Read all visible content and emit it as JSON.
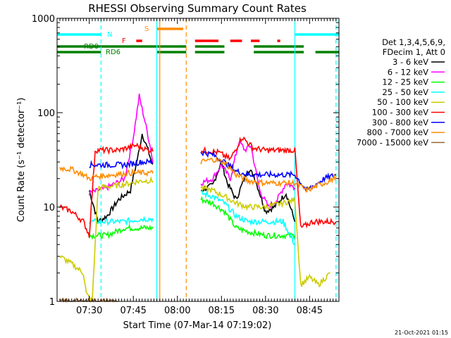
{
  "chart_data": {
    "type": "line",
    "title": "RHESSI Observing Summary Count Rates",
    "xlabel": "Start Time (07-Mar-14 07:19:02)",
    "ylabel": "Count Rate (s⁻¹ detector⁻¹)",
    "y_scale": "log",
    "ylim": [
      1,
      1000
    ],
    "y_ticks": [
      {
        "value": 1,
        "label": "1"
      },
      {
        "value": 10,
        "label": "10"
      },
      {
        "value": 100,
        "label": "100"
      },
      {
        "value": 1000,
        "label": "1000"
      }
    ],
    "xlim": [
      "07:19:02",
      "08:55:00"
    ],
    "x_ticks": [
      {
        "value": "07:30",
        "label": "07:30"
      },
      {
        "value": "07:45",
        "label": "07:45"
      },
      {
        "value": "08:00",
        "label": "08:00"
      },
      {
        "value": "08:15",
        "label": "08:15"
      },
      {
        "value": "08:30",
        "label": "08:30"
      },
      {
        "value": "08:45",
        "label": "08:45"
      }
    ],
    "legend_placement": "right",
    "legend_header": [
      "Det 1,3,4,5,6,9,",
      "FDecim 1, Att 0"
    ],
    "timestamp": "21-Oct-2021 01:15",
    "series": [
      {
        "name": "3 - 6 keV",
        "color": "#000000",
        "points": [
          [
            "07:30",
            15
          ],
          [
            "07:33",
            7
          ],
          [
            "07:36",
            8
          ],
          [
            "07:40",
            12
          ],
          [
            "07:44",
            15
          ],
          [
            "07:47",
            40
          ],
          [
            "07:48",
            60
          ],
          [
            "07:50",
            40
          ],
          [
            "07:52",
            25
          ],
          [
            "08:08",
            15
          ],
          [
            "08:12",
            17
          ],
          [
            "08:15",
            30
          ],
          [
            "08:17",
            18
          ],
          [
            "08:20",
            12
          ],
          [
            "08:24",
            25
          ],
          [
            "08:26",
            22
          ],
          [
            "08:30",
            9
          ],
          [
            "08:33",
            10
          ],
          [
            "08:37",
            14
          ],
          [
            "08:40",
            7
          ]
        ]
      },
      {
        "name": "6 - 12 keV",
        "color": "#ff00ff",
        "points": [
          [
            "07:30",
            14
          ],
          [
            "07:36",
            16
          ],
          [
            "07:42",
            20
          ],
          [
            "07:45",
            55
          ],
          [
            "07:47",
            150
          ],
          [
            "07:49",
            80
          ],
          [
            "07:51",
            40
          ],
          [
            "07:52",
            25
          ],
          [
            "08:08",
            18
          ],
          [
            "08:12",
            20
          ],
          [
            "08:15",
            28
          ],
          [
            "08:18",
            20
          ],
          [
            "08:21",
            50
          ],
          [
            "08:23",
            40
          ],
          [
            "08:25",
            45
          ],
          [
            "08:28",
            15
          ],
          [
            "08:31",
            10
          ],
          [
            "08:34",
            12
          ],
          [
            "08:37",
            18
          ],
          [
            "08:40",
            16
          ]
        ]
      },
      {
        "name": "12 - 25 keV",
        "color": "#00ff00",
        "points": [
          [
            "07:30",
            5
          ],
          [
            "07:36",
            5
          ],
          [
            "07:42",
            6
          ],
          [
            "07:48",
            6
          ],
          [
            "07:52",
            6
          ],
          [
            "08:08",
            12
          ],
          [
            "08:12",
            11
          ],
          [
            "08:16",
            9
          ],
          [
            "08:20",
            6
          ],
          [
            "08:24",
            5.5
          ],
          [
            "08:30",
            5
          ],
          [
            "08:36",
            5
          ],
          [
            "08:40",
            5
          ]
        ]
      },
      {
        "name": "25 - 50 keV",
        "color": "#00ffff",
        "points": [
          [
            "07:30",
            7
          ],
          [
            "07:36",
            7
          ],
          [
            "07:42",
            7
          ],
          [
            "07:48",
            7.5
          ],
          [
            "07:52",
            7.5
          ],
          [
            "08:08",
            14
          ],
          [
            "08:12",
            13
          ],
          [
            "08:16",
            11
          ],
          [
            "08:20",
            8
          ],
          [
            "08:24",
            7
          ],
          [
            "08:30",
            7
          ],
          [
            "08:36",
            7
          ],
          [
            "08:40",
            4
          ]
        ]
      },
      {
        "name": "50 - 100 keV",
        "color": "#cccc00",
        "points": [
          [
            "07:20",
            3
          ],
          [
            "07:24",
            2.5
          ],
          [
            "07:28",
            2
          ],
          [
            "07:29",
            1.2
          ],
          [
            "07:31",
            1
          ],
          [
            "07:33",
            16
          ],
          [
            "07:40",
            17
          ],
          [
            "07:48",
            19
          ],
          [
            "07:52",
            19
          ],
          [
            "08:08",
            16
          ],
          [
            "08:12",
            15
          ],
          [
            "08:16",
            13
          ],
          [
            "08:20",
            11
          ],
          [
            "08:24",
            10
          ],
          [
            "08:30",
            10
          ],
          [
            "08:36",
            11
          ],
          [
            "08:40",
            12
          ],
          [
            "08:42",
            1.5
          ],
          [
            "08:45",
            1.8
          ],
          [
            "08:48",
            1.5
          ],
          [
            "08:52",
            2
          ]
        ]
      },
      {
        "name": "100 - 300 keV",
        "color": "#ff0000",
        "points": [
          [
            "07:20",
            10
          ],
          [
            "07:24",
            9
          ],
          [
            "07:28",
            7
          ],
          [
            "07:30",
            5
          ],
          [
            "07:32",
            40
          ],
          [
            "07:40",
            40
          ],
          [
            "07:46",
            45
          ],
          [
            "07:50",
            40
          ],
          [
            "07:52",
            40
          ],
          [
            "08:08",
            40
          ],
          [
            "08:14",
            38
          ],
          [
            "08:18",
            32
          ],
          [
            "08:22",
            55
          ],
          [
            "08:26",
            42
          ],
          [
            "08:30",
            40
          ],
          [
            "08:36",
            40
          ],
          [
            "08:40",
            40
          ],
          [
            "08:42",
            6
          ],
          [
            "08:46",
            7
          ],
          [
            "08:50",
            7
          ],
          [
            "08:54",
            7
          ]
        ]
      },
      {
        "name": "300 - 800 keV",
        "color": "#0000ff",
        "points": [
          [
            "07:30",
            28
          ],
          [
            "07:36",
            28
          ],
          [
            "07:42",
            28
          ],
          [
            "07:48",
            30
          ],
          [
            "07:52",
            30
          ],
          [
            "08:08",
            38
          ],
          [
            "08:12",
            36
          ],
          [
            "08:16",
            30
          ],
          [
            "08:20",
            24
          ],
          [
            "08:24",
            22
          ],
          [
            "08:30",
            22
          ],
          [
            "08:36",
            22
          ],
          [
            "08:40",
            22
          ],
          [
            "08:44",
            15
          ],
          [
            "08:50",
            20
          ],
          [
            "08:54",
            22
          ]
        ]
      },
      {
        "name": "800 - 7000 keV",
        "color": "#ff8c00",
        "points": [
          [
            "07:20",
            26
          ],
          [
            "07:24",
            25
          ],
          [
            "07:28",
            22
          ],
          [
            "07:30",
            20
          ],
          [
            "07:32",
            21
          ],
          [
            "07:38",
            22
          ],
          [
            "07:44",
            23
          ],
          [
            "07:50",
            23
          ],
          [
            "07:52",
            23
          ],
          [
            "08:08",
            30
          ],
          [
            "08:12",
            32
          ],
          [
            "08:16",
            30
          ],
          [
            "08:20",
            22
          ],
          [
            "08:24",
            19
          ],
          [
            "08:30",
            18
          ],
          [
            "08:36",
            18
          ],
          [
            "08:40",
            18
          ],
          [
            "08:44",
            15
          ],
          [
            "08:48",
            17
          ],
          [
            "08:52",
            19
          ],
          [
            "08:54",
            21
          ]
        ]
      },
      {
        "name": "7000 - 15000 keV",
        "color": "#996633",
        "points": [
          [
            "07:20",
            1
          ],
          [
            "07:30",
            1
          ],
          [
            "07:40",
            1
          ],
          [
            "07:52",
            1
          ]
        ]
      }
    ],
    "status_flags": [
      {
        "label": "S",
        "color": "#ff8c00",
        "segments": [
          [
            "07:53",
            "08:02"
          ]
        ]
      },
      {
        "label": "F",
        "color": "#ff0000",
        "segments": [
          [
            "07:46",
            "07:48"
          ],
          [
            "08:06",
            "08:14"
          ],
          [
            "08:18",
            "08:22"
          ],
          [
            "08:25",
            "08:28"
          ],
          [
            "08:34",
            "08:35"
          ]
        ]
      },
      {
        "label": "N",
        "color": "#00ffff",
        "segments": [
          [
            "07:19:02",
            "07:34"
          ],
          [
            "08:40",
            "08:55"
          ]
        ]
      },
      {
        "label": "RD0",
        "color": "#008000",
        "segments": [
          [
            "07:19:02",
            "08:03"
          ],
          [
            "08:06",
            "08:16"
          ],
          [
            "08:26",
            "08:43"
          ]
        ]
      },
      {
        "label": "RD6",
        "color": "#008000",
        "segments": [
          [
            "07:19:02",
            "07:34"
          ],
          [
            "07:53",
            "08:03"
          ],
          [
            "08:06",
            "08:16"
          ],
          [
            "08:26",
            "08:43"
          ],
          [
            "08:47",
            "08:55"
          ]
        ]
      }
    ],
    "vertical_markers": [
      {
        "time": "07:34",
        "color": "#00ffff",
        "style": "dashed"
      },
      {
        "time": "07:53",
        "color": "#00ffff",
        "style": "solid"
      },
      {
        "time": "07:54",
        "color": "#ff8c00",
        "style": "solid"
      },
      {
        "time": "08:03",
        "color": "#ff8c00",
        "style": "dashed"
      },
      {
        "time": "08:40",
        "color": "#00ffff",
        "style": "solid"
      },
      {
        "time": "08:54",
        "color": "#00ffff",
        "style": "dashed"
      }
    ]
  }
}
